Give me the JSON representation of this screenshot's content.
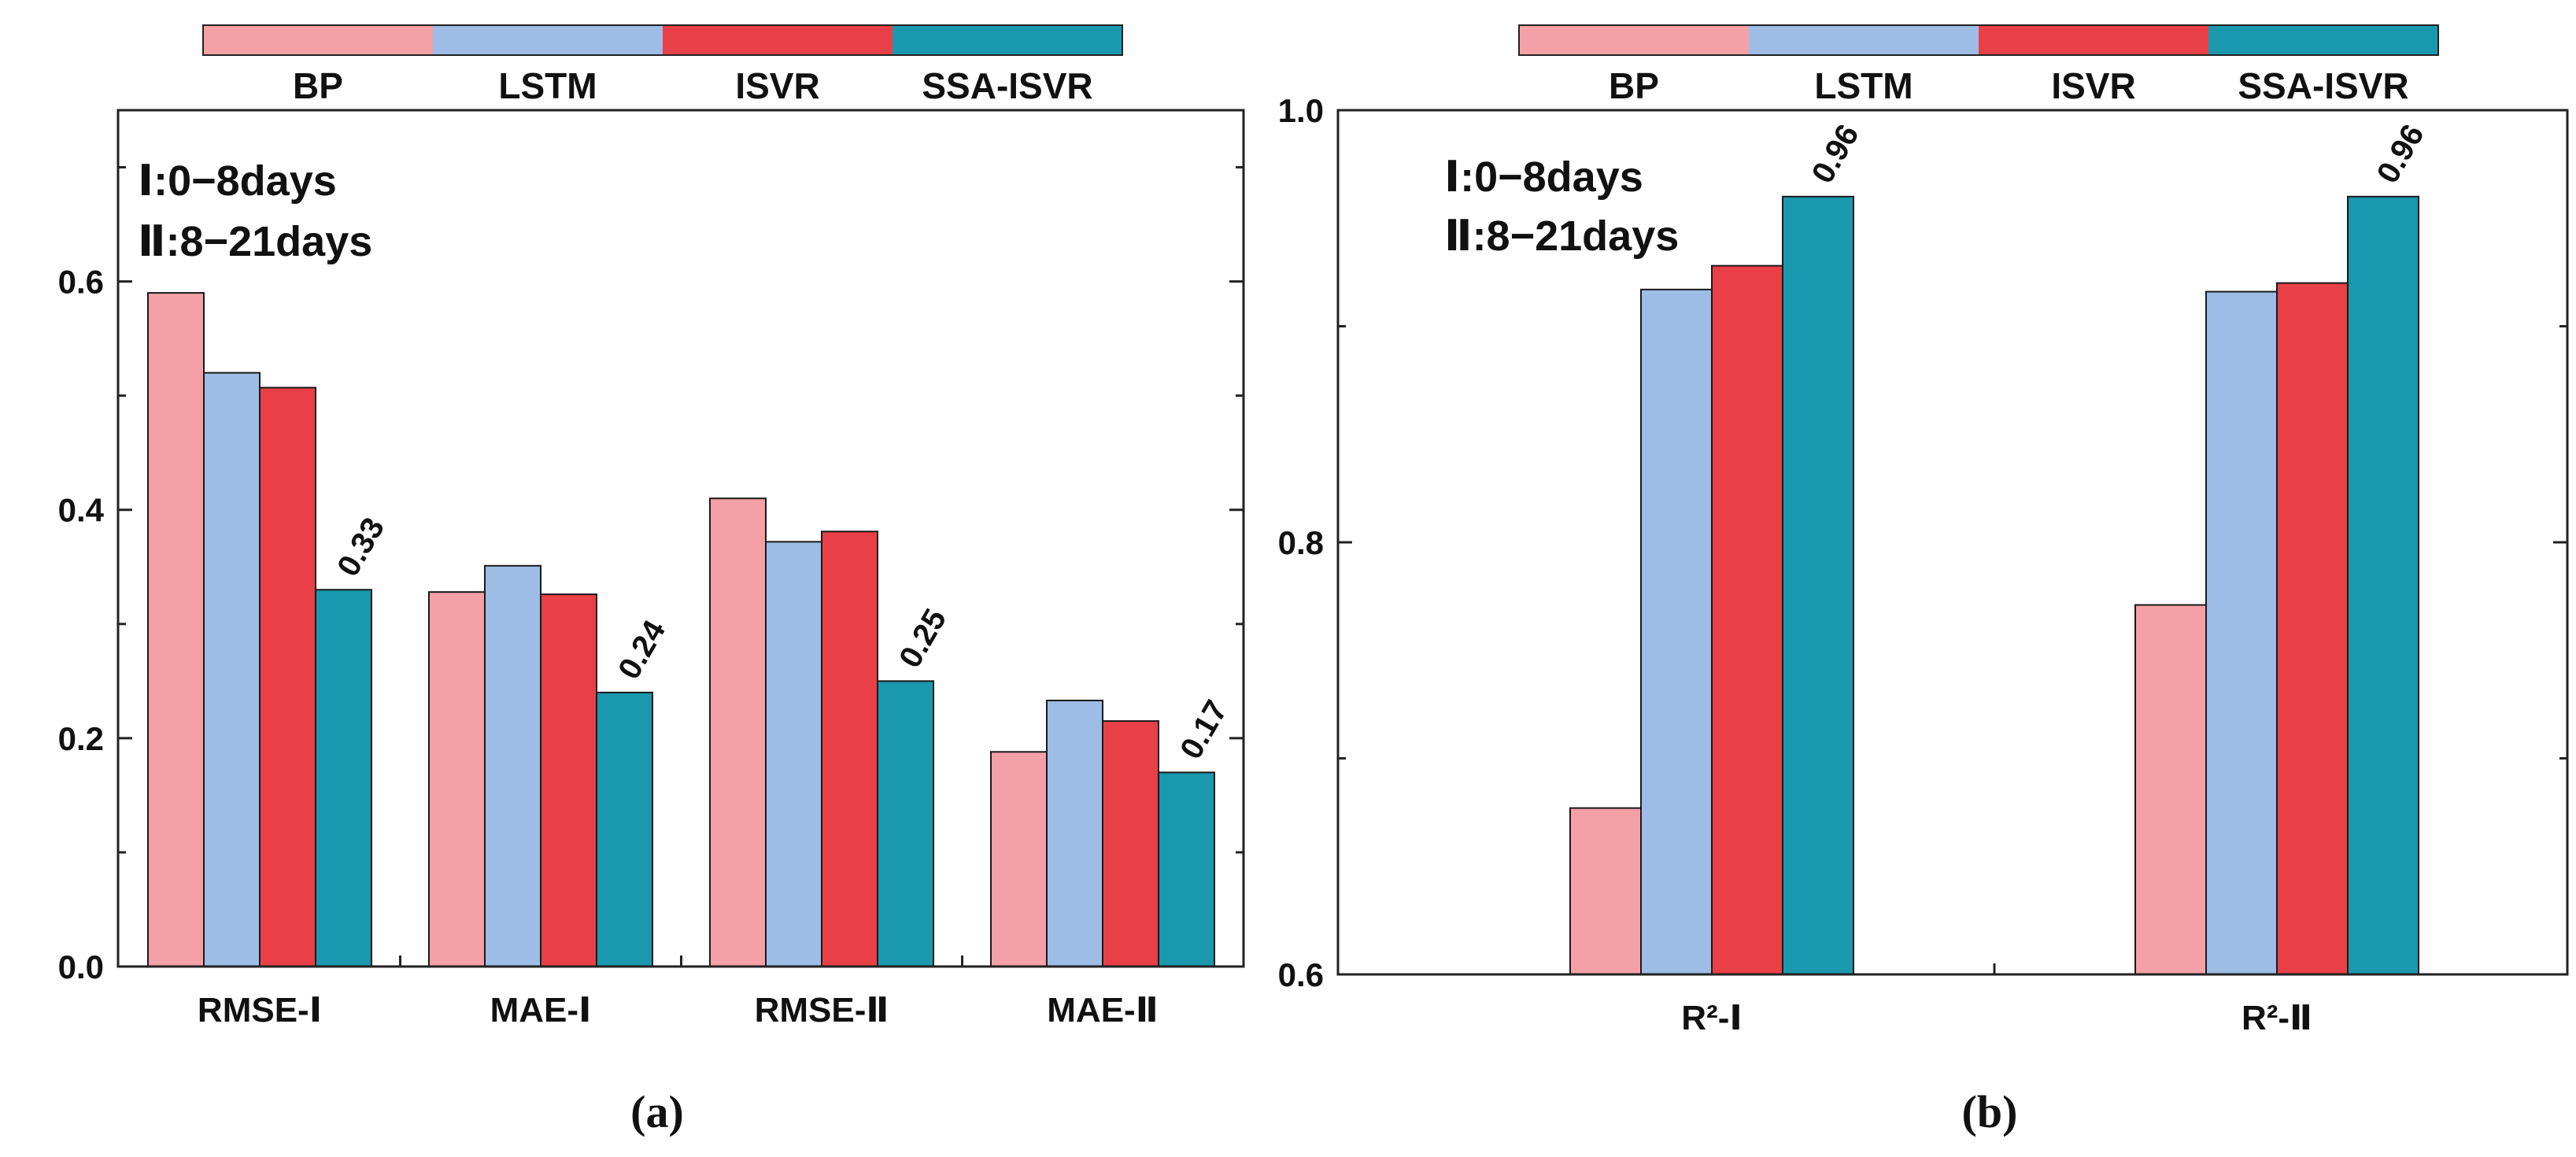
{
  "figure": {
    "domain": "bar chart comparison"
  },
  "chart_data": [
    {
      "type": "bar",
      "panel_label": "(a)",
      "categories": [
        "RMSE-Ⅰ",
        "MAE-Ⅰ",
        "RMSE-Ⅱ",
        "MAE-Ⅱ"
      ],
      "series": [
        {
          "name": "BP",
          "color": "#F4A0A6",
          "values": [
            0.59,
            0.328,
            0.41,
            0.188
          ]
        },
        {
          "name": "LSTM",
          "color": "#9DBDE6",
          "values": [
            0.52,
            0.351,
            0.372,
            0.233
          ]
        },
        {
          "name": "ISVR",
          "color": "#E84046",
          "values": [
            0.507,
            0.326,
            0.381,
            0.215
          ]
        },
        {
          "name": "SSA-ISVR",
          "color": "#1A98AE",
          "values": [
            0.33,
            0.24,
            0.25,
            0.17
          ]
        }
      ],
      "value_labels": [
        "0.33",
        "0.24",
        "0.25",
        "0.17"
      ],
      "ylim": [
        0,
        0.75
      ],
      "yticks": [
        0.0,
        0.2,
        0.4,
        0.6
      ],
      "ytick_labels": [
        "0.0",
        "0.2",
        "0.4",
        "0.6"
      ],
      "minor_yticks": [
        0.1,
        0.3,
        0.5,
        0.7
      ],
      "xlabel": "",
      "ylabel": "",
      "annotations": [
        "Ⅰ:0−8days",
        "Ⅱ:8−21days"
      ],
      "legend": {
        "placement": "top",
        "entries": [
          "BP",
          "LSTM",
          "ISVR",
          "SSA-ISVR"
        ]
      }
    },
    {
      "type": "bar",
      "panel_label": "(b)",
      "categories": [
        "R²-Ⅰ",
        "R²-Ⅱ"
      ],
      "series": [
        {
          "name": "BP",
          "color": "#F4A0A6",
          "values": [
            0.677,
            0.771
          ]
        },
        {
          "name": "LSTM",
          "color": "#9DBDE6",
          "values": [
            0.917,
            0.916
          ]
        },
        {
          "name": "ISVR",
          "color": "#E84046",
          "values": [
            0.928,
            0.92
          ]
        },
        {
          "name": "SSA-ISVR",
          "color": "#1A98AE",
          "values": [
            0.96,
            0.96
          ]
        }
      ],
      "value_labels": [
        "0.96",
        "0.96"
      ],
      "ylim": [
        0.6,
        1.0
      ],
      "yticks": [
        0.6,
        0.8,
        1.0
      ],
      "ytick_labels": [
        "0.6",
        "0.8",
        "1.0"
      ],
      "minor_yticks": [
        0.7,
        0.9
      ],
      "xlabel": "",
      "ylabel": "",
      "annotations": [
        "Ⅰ:0−8days",
        "Ⅱ:8−21days"
      ],
      "legend": {
        "placement": "top",
        "entries": [
          "BP",
          "LSTM",
          "ISVR",
          "SSA-ISVR"
        ]
      }
    }
  ]
}
